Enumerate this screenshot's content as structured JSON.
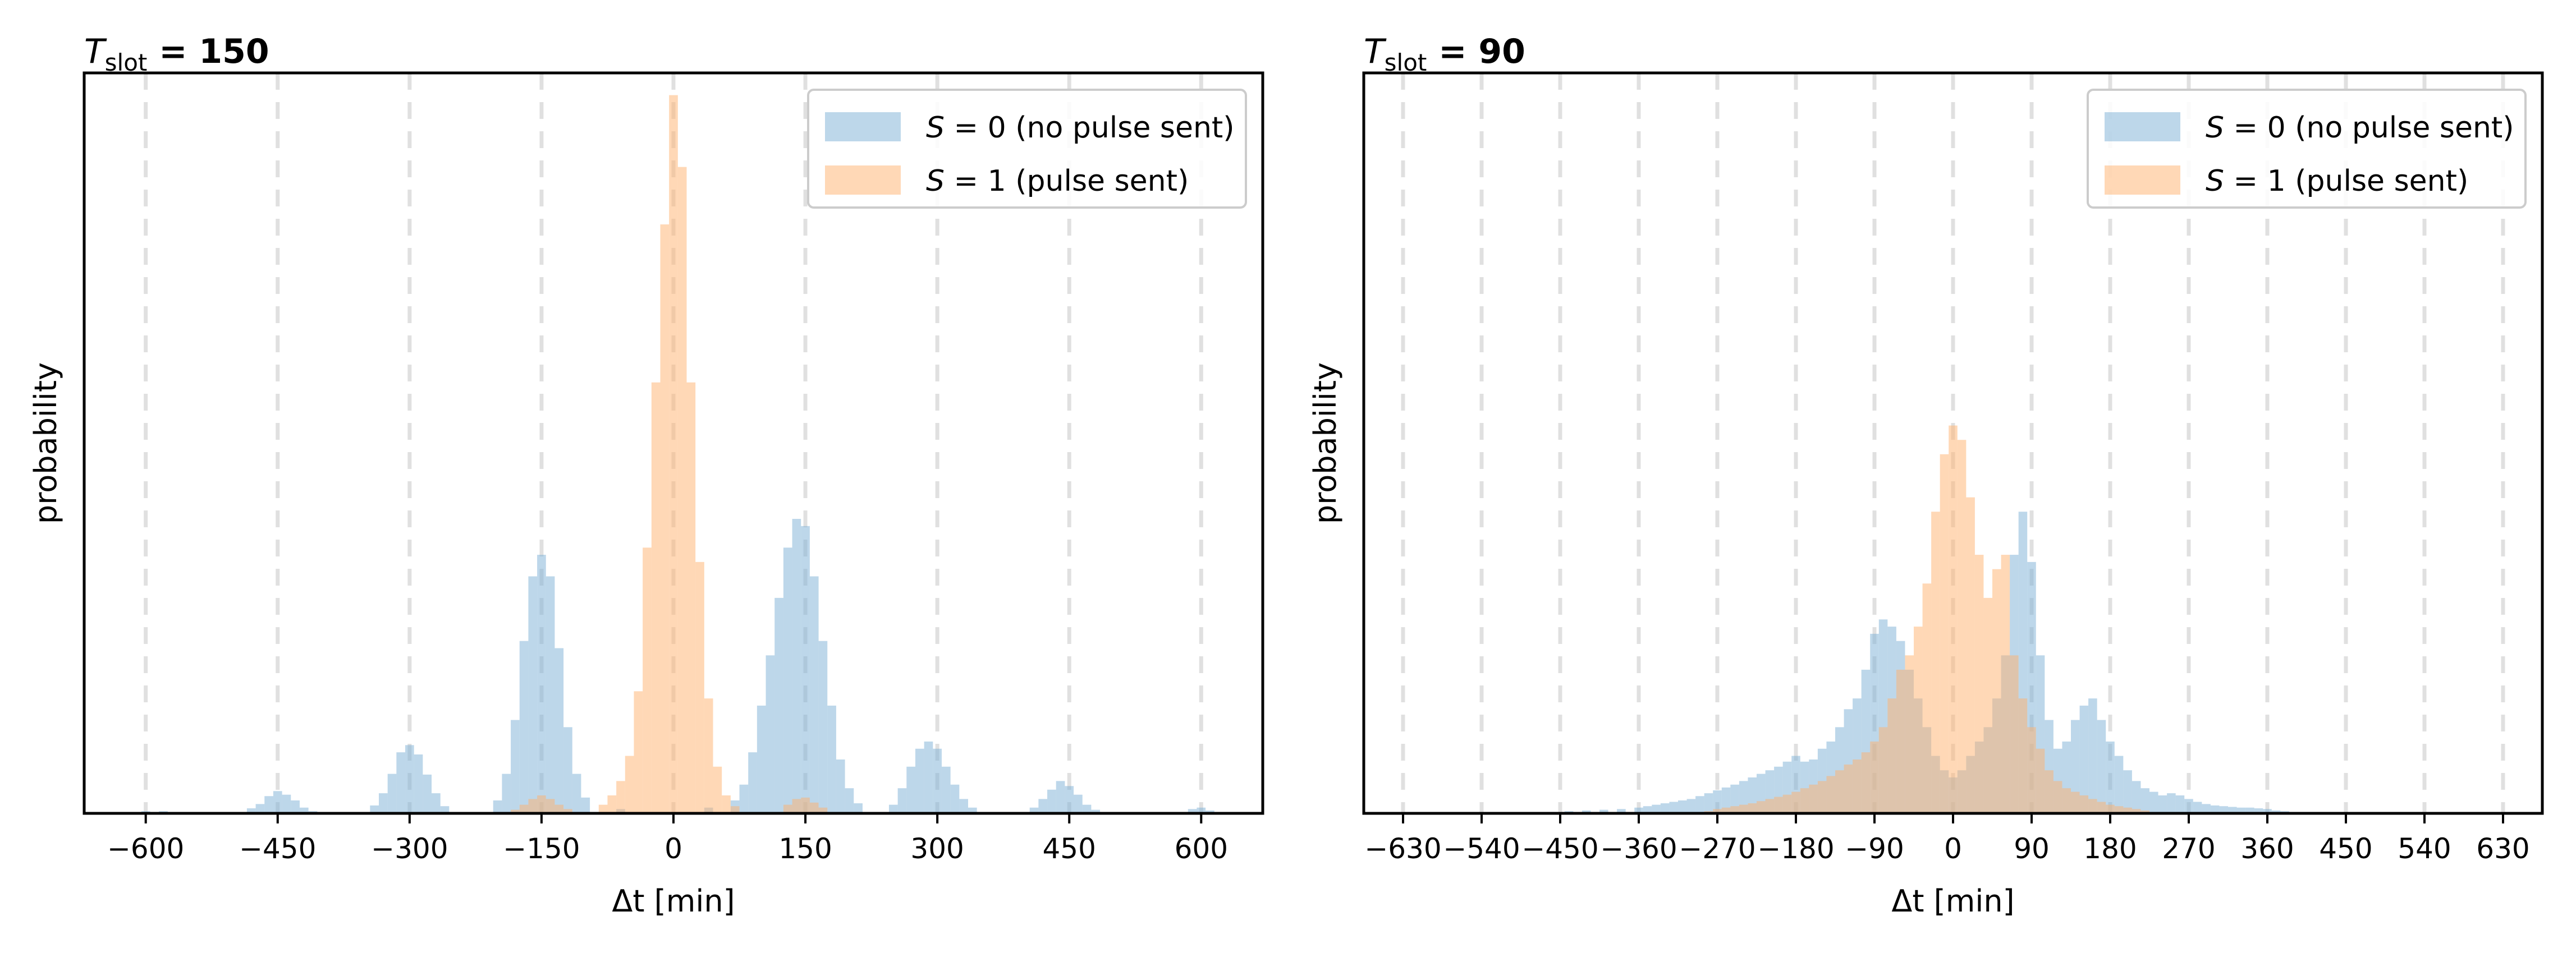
{
  "colors": {
    "s0": "#7bb0d5",
    "s1": "#ffb26e",
    "grid": "#e0e0e0",
    "axis": "#000000"
  },
  "chart_data": [
    {
      "type": "histogram",
      "title_prefix": "T",
      "title_sub": "slot",
      "title_suffix": " = 150",
      "xlabel": "Δt [min]",
      "ylabel": "probability",
      "xlim": [
        -670,
        670
      ],
      "ylim": [
        0,
        1
      ],
      "xticks": [
        -600,
        -450,
        -300,
        -150,
        0,
        150,
        300,
        450,
        600
      ],
      "xtick_labels": [
        "−600",
        "−450",
        "−300",
        "−150",
        "0",
        "150",
        "300",
        "450",
        "600"
      ],
      "y_ticks_shown": false,
      "grid_x": true,
      "grid_lines": [
        -600,
        -450,
        -300,
        -150,
        0,
        150,
        300,
        450,
        600
      ],
      "legend": {
        "placement": "upper right",
        "entries": [
          {
            "var": "S",
            "rest": " = 0 (no pulse sent)"
          },
          {
            "var": "S",
            "rest": " = 1 (pulse sent)"
          }
        ]
      },
      "bin_width": 10,
      "series": [
        {
          "key": "s0",
          "bins": [
            [
              -600,
              0.003
            ],
            [
              -580,
              0.003
            ],
            [
              -480,
              0.007
            ],
            [
              -470,
              0.013
            ],
            [
              -460,
              0.024
            ],
            [
              -450,
              0.031
            ],
            [
              -440,
              0.026
            ],
            [
              -430,
              0.018
            ],
            [
              -420,
              0.008
            ],
            [
              -410,
              0.003
            ],
            [
              -340,
              0.011
            ],
            [
              -330,
              0.028
            ],
            [
              -320,
              0.055
            ],
            [
              -310,
              0.085
            ],
            [
              -300,
              0.095
            ],
            [
              -290,
              0.082
            ],
            [
              -280,
              0.054
            ],
            [
              -270,
              0.028
            ],
            [
              -260,
              0.01
            ],
            [
              -200,
              0.018
            ],
            [
              -190,
              0.055
            ],
            [
              -180,
              0.13
            ],
            [
              -170,
              0.24
            ],
            [
              -160,
              0.33
            ],
            [
              -150,
              0.36
            ],
            [
              -140,
              0.33
            ],
            [
              -130,
              0.23
            ],
            [
              -120,
              0.12
            ],
            [
              -110,
              0.055
            ],
            [
              -100,
              0.022
            ],
            [
              -60,
              0.006
            ],
            [
              40,
              0.008
            ],
            [
              70,
              0.018
            ],
            [
              80,
              0.04
            ],
            [
              90,
              0.085
            ],
            [
              100,
              0.15
            ],
            [
              110,
              0.22
            ],
            [
              120,
              0.3
            ],
            [
              130,
              0.37
            ],
            [
              140,
              0.41
            ],
            [
              150,
              0.4
            ],
            [
              160,
              0.33
            ],
            [
              170,
              0.24
            ],
            [
              180,
              0.15
            ],
            [
              190,
              0.075
            ],
            [
              200,
              0.035
            ],
            [
              210,
              0.014
            ],
            [
              250,
              0.012
            ],
            [
              260,
              0.035
            ],
            [
              270,
              0.065
            ],
            [
              280,
              0.09
            ],
            [
              290,
              0.1
            ],
            [
              300,
              0.09
            ],
            [
              310,
              0.065
            ],
            [
              320,
              0.04
            ],
            [
              330,
              0.02
            ],
            [
              340,
              0.008
            ],
            [
              410,
              0.008
            ],
            [
              420,
              0.02
            ],
            [
              430,
              0.033
            ],
            [
              440,
              0.045
            ],
            [
              450,
              0.038
            ],
            [
              460,
              0.026
            ],
            [
              470,
              0.012
            ],
            [
              480,
              0.005
            ],
            [
              590,
              0.006
            ],
            [
              600,
              0.008
            ],
            [
              610,
              0.004
            ]
          ]
        },
        {
          "key": "s1",
          "bins": [
            [
              -180,
              0.005
            ],
            [
              -170,
              0.012
            ],
            [
              -160,
              0.02
            ],
            [
              -150,
              0.025
            ],
            [
              -140,
              0.02
            ],
            [
              -130,
              0.012
            ],
            [
              -120,
              0.006
            ],
            [
              -80,
              0.012
            ],
            [
              -70,
              0.025
            ],
            [
              -60,
              0.045
            ],
            [
              -50,
              0.08
            ],
            [
              -40,
              0.17
            ],
            [
              -30,
              0.37
            ],
            [
              -20,
              0.6
            ],
            [
              -10,
              0.82
            ],
            [
              0,
              1.0
            ],
            [
              10,
              0.9
            ],
            [
              20,
              0.6
            ],
            [
              30,
              0.35
            ],
            [
              40,
              0.16
            ],
            [
              50,
              0.065
            ],
            [
              60,
              0.025
            ],
            [
              70,
              0.01
            ],
            [
              130,
              0.012
            ],
            [
              140,
              0.02
            ],
            [
              150,
              0.022
            ],
            [
              160,
              0.015
            ],
            [
              170,
              0.008
            ]
          ]
        }
      ]
    },
    {
      "type": "histogram",
      "title_prefix": "T",
      "title_sub": "slot",
      "title_suffix": " = 90",
      "xlabel": "Δt [min]",
      "ylabel": "probability",
      "xlim": [
        -675,
        675
      ],
      "ylim": [
        0,
        1
      ],
      "xticks": [
        -630,
        -540,
        -450,
        -360,
        -270,
        -180,
        -90,
        0,
        90,
        180,
        270,
        360,
        450,
        540,
        630
      ],
      "xtick_labels": [
        "−630",
        "−540",
        "−450",
        "−360",
        "−270",
        "−180",
        "−90",
        "0",
        "90",
        "180",
        "270",
        "360",
        "450",
        "540",
        "630"
      ],
      "y_ticks_shown": false,
      "grid_x": true,
      "grid_lines": [
        -630,
        -540,
        -450,
        -360,
        -270,
        -180,
        -90,
        0,
        90,
        180,
        270,
        360,
        450,
        540,
        630
      ],
      "legend": {
        "placement": "upper right",
        "entries": [
          {
            "var": "S",
            "rest": " = 0 (no pulse sent)"
          },
          {
            "var": "S",
            "rest": " = 1 (pulse sent)"
          }
        ]
      },
      "bin_width": 10,
      "series": [
        {
          "key": "s0",
          "bins": [
            [
              -460,
              0.002
            ],
            [
              -440,
              0.003
            ],
            [
              -420,
              0.004
            ],
            [
              -400,
              0.005
            ],
            [
              -380,
              0.006
            ],
            [
              -360,
              0.008
            ],
            [
              -350,
              0.01
            ],
            [
              -340,
              0.012
            ],
            [
              -330,
              0.014
            ],
            [
              -320,
              0.016
            ],
            [
              -310,
              0.018
            ],
            [
              -300,
              0.02
            ],
            [
              -290,
              0.024
            ],
            [
              -280,
              0.028
            ],
            [
              -270,
              0.032
            ],
            [
              -260,
              0.036
            ],
            [
              -250,
              0.04
            ],
            [
              -240,
              0.045
            ],
            [
              -230,
              0.05
            ],
            [
              -220,
              0.055
            ],
            [
              -210,
              0.06
            ],
            [
              -200,
              0.065
            ],
            [
              -190,
              0.072
            ],
            [
              -180,
              0.08
            ],
            [
              -170,
              0.072
            ],
            [
              -160,
              0.075
            ],
            [
              -150,
              0.09
            ],
            [
              -140,
              0.1
            ],
            [
              -130,
              0.12
            ],
            [
              -120,
              0.145
            ],
            [
              -110,
              0.16
            ],
            [
              -100,
              0.2
            ],
            [
              -90,
              0.25
            ],
            [
              -80,
              0.27
            ],
            [
              -70,
              0.26
            ],
            [
              -60,
              0.24
            ],
            [
              -50,
              0.2
            ],
            [
              -40,
              0.16
            ],
            [
              -30,
              0.12
            ],
            [
              -20,
              0.08
            ],
            [
              -10,
              0.06
            ],
            [
              0,
              0.05
            ],
            [
              10,
              0.06
            ],
            [
              20,
              0.08
            ],
            [
              30,
              0.1
            ],
            [
              40,
              0.12
            ],
            [
              50,
              0.16
            ],
            [
              60,
              0.22
            ],
            [
              70,
              0.36
            ],
            [
              80,
              0.42
            ],
            [
              90,
              0.35
            ],
            [
              100,
              0.22
            ],
            [
              110,
              0.13
            ],
            [
              120,
              0.09
            ],
            [
              130,
              0.1
            ],
            [
              140,
              0.13
            ],
            [
              150,
              0.15
            ],
            [
              160,
              0.16
            ],
            [
              170,
              0.13
            ],
            [
              180,
              0.1
            ],
            [
              190,
              0.08
            ],
            [
              200,
              0.06
            ],
            [
              210,
              0.045
            ],
            [
              220,
              0.035
            ],
            [
              230,
              0.03
            ],
            [
              240,
              0.025
            ],
            [
              250,
              0.028
            ],
            [
              260,
              0.025
            ],
            [
              270,
              0.02
            ],
            [
              280,
              0.016
            ],
            [
              290,
              0.013
            ],
            [
              300,
              0.011
            ],
            [
              310,
              0.01
            ],
            [
              320,
              0.009
            ],
            [
              330,
              0.008
            ],
            [
              340,
              0.008
            ],
            [
              350,
              0.007
            ],
            [
              360,
              0.006
            ],
            [
              370,
              0.004
            ],
            [
              380,
              0.003
            ]
          ]
        },
        {
          "key": "s1",
          "bins": [
            [
              -280,
              0.003
            ],
            [
              -270,
              0.006
            ],
            [
              -260,
              0.008
            ],
            [
              -250,
              0.01
            ],
            [
              -240,
              0.012
            ],
            [
              -230,
              0.014
            ],
            [
              -220,
              0.017
            ],
            [
              -210,
              0.02
            ],
            [
              -200,
              0.023
            ],
            [
              -190,
              0.026
            ],
            [
              -180,
              0.03
            ],
            [
              -170,
              0.035
            ],
            [
              -160,
              0.04
            ],
            [
              -150,
              0.045
            ],
            [
              -140,
              0.052
            ],
            [
              -130,
              0.06
            ],
            [
              -120,
              0.068
            ],
            [
              -110,
              0.075
            ],
            [
              -100,
              0.085
            ],
            [
              -90,
              0.1
            ],
            [
              -80,
              0.12
            ],
            [
              -70,
              0.16
            ],
            [
              -60,
              0.2
            ],
            [
              -50,
              0.22
            ],
            [
              -40,
              0.26
            ],
            [
              -30,
              0.32
            ],
            [
              -20,
              0.42
            ],
            [
              -10,
              0.5
            ],
            [
              0,
              0.54
            ],
            [
              10,
              0.52
            ],
            [
              20,
              0.44
            ],
            [
              30,
              0.36
            ],
            [
              40,
              0.3
            ],
            [
              50,
              0.34
            ],
            [
              60,
              0.36
            ],
            [
              70,
              0.22
            ],
            [
              80,
              0.16
            ],
            [
              90,
              0.12
            ],
            [
              100,
              0.09
            ],
            [
              110,
              0.06
            ],
            [
              120,
              0.045
            ],
            [
              130,
              0.035
            ],
            [
              140,
              0.03
            ],
            [
              150,
              0.025
            ],
            [
              160,
              0.02
            ],
            [
              170,
              0.016
            ],
            [
              180,
              0.012
            ],
            [
              190,
              0.01
            ],
            [
              200,
              0.008
            ],
            [
              210,
              0.006
            ],
            [
              220,
              0.004
            ]
          ]
        }
      ]
    }
  ]
}
